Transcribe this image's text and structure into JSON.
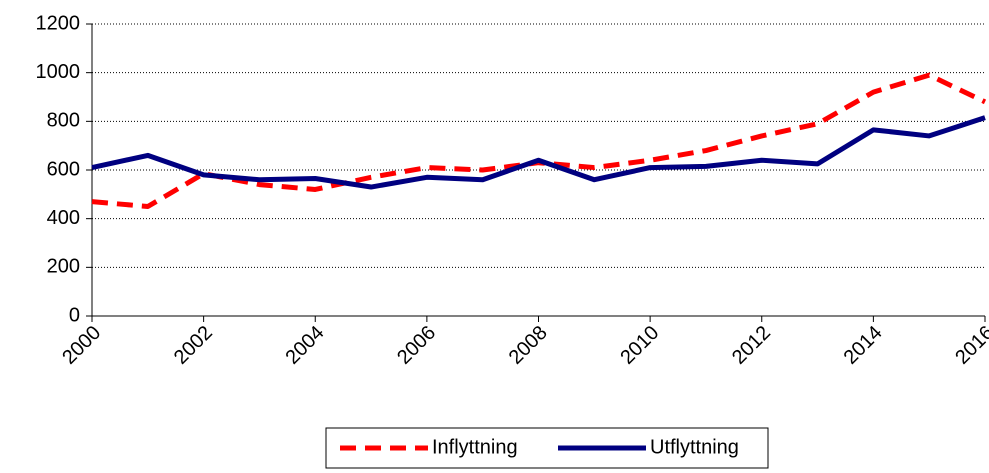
{
  "chart_data": {
    "type": "line",
    "x": [
      2000,
      2001,
      2002,
      2003,
      2004,
      2005,
      2006,
      2007,
      2008,
      2009,
      2010,
      2011,
      2012,
      2013,
      2014,
      2015,
      2016
    ],
    "series": [
      {
        "name": "Inflyttning",
        "color": "#ff0000",
        "dashed": true,
        "values": [
          470,
          450,
          585,
          540,
          520,
          570,
          610,
          600,
          630,
          610,
          640,
          680,
          740,
          790,
          920,
          990,
          880
        ]
      },
      {
        "name": "Utflyttning",
        "color": "#000080",
        "dashed": false,
        "values": [
          610,
          660,
          580,
          560,
          565,
          530,
          570,
          560,
          640,
          560,
          610,
          615,
          640,
          625,
          765,
          740,
          815
        ]
      }
    ],
    "xlim": [
      2000,
      2016
    ],
    "xticks": [
      2000,
      2002,
      2004,
      2006,
      2008,
      2010,
      2012,
      2014,
      2016
    ],
    "ylim": [
      0,
      1200
    ],
    "yticks": [
      0,
      200,
      400,
      600,
      800,
      1000,
      1200
    ],
    "grid": true,
    "legend": "bottom"
  }
}
